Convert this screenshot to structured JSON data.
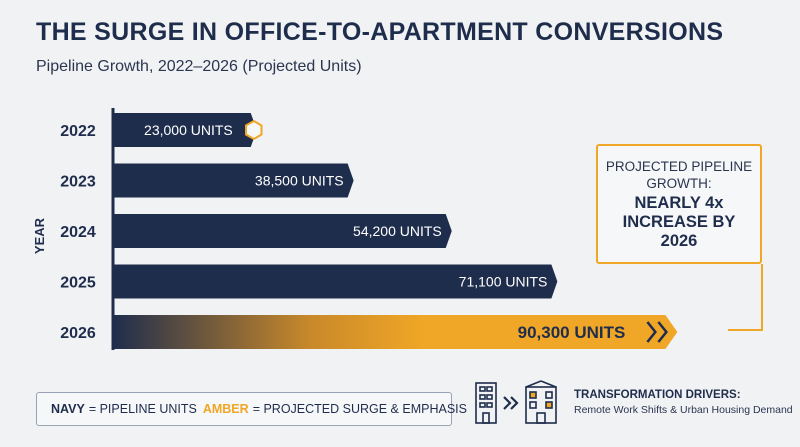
{
  "header": {
    "title": "THE SURGE IN OFFICE-TO-APARTMENT CONVERSIONS",
    "subtitle": "Pipeline Growth, 2022–2026 (Projected Units)"
  },
  "chart_data": {
    "type": "bar",
    "orientation": "horizontal",
    "ylabel": "YEAR",
    "categories": [
      "2022",
      "2023",
      "2024",
      "2025",
      "2026"
    ],
    "values": [
      23000,
      38500,
      54200,
      71100,
      90300
    ],
    "value_labels": [
      "23,000 UNITS",
      "38,500 UNITS",
      "54,200 UNITS",
      "71,100 UNITS",
      "90,300 UNITS"
    ],
    "xlim": [
      0,
      104000
    ],
    "emphasis_index": 4,
    "grid": false
  },
  "callout": {
    "line1": "PROJECTED PIPELINE GROWTH:",
    "line2": "NEARLY 4x INCREASE BY 2026"
  },
  "legend": {
    "navy_key": "NAVY",
    "navy_desc": "= PIPELINE UNITS",
    "amber_key": "AMBER",
    "amber_desc": "= PROJECTED SURGE & EMPHASIS"
  },
  "drivers": {
    "title": "TRANSFORMATION DRIVERS:",
    "subtitle": "Remote Work Shifts & Urban Housing Demand",
    "icons": [
      "office-building-icon",
      "double-chevron-right-icon",
      "apartment-building-icon"
    ]
  },
  "colors": {
    "navy": "#1f2d4d",
    "amber": "#f0a626",
    "background": "#f1f2f4"
  }
}
